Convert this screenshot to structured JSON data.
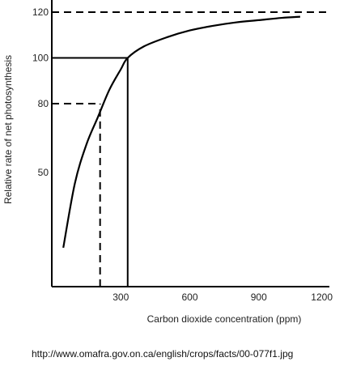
{
  "chart_data": {
    "type": "line",
    "title": "",
    "xlabel": "Carbon dioxide concentration (ppm)",
    "ylabel": "Relative rate of net photosynthesis",
    "xlim": [
      0,
      1200
    ],
    "ylim": [
      0,
      120
    ],
    "x_ticks": [
      300,
      600,
      900,
      1200
    ],
    "y_ticks": [
      50,
      80,
      100,
      120
    ],
    "x_tick_labels": [
      "300",
      "600",
      "900",
      "1200"
    ],
    "y_tick_labels": [
      "50",
      "80",
      "100",
      "120"
    ],
    "grid": false,
    "series": [
      {
        "x": [
          50,
          100,
          150,
          200,
          250,
          300,
          330,
          400,
          500,
          600,
          700,
          800,
          900,
          1000,
          1080
        ],
        "y": [
          17,
          45,
          62,
          74,
          86,
          95,
          100,
          105,
          109,
          112,
          114,
          115.5,
          116.5,
          117.5,
          118
        ]
      }
    ],
    "reference_lines": [
      {
        "style": "dashed",
        "y": 120,
        "x_from": 0,
        "x_to": 1200
      },
      {
        "style": "solid",
        "y": 100,
        "x_from": 0,
        "x_to": 330
      },
      {
        "style": "solid",
        "x": 330,
        "y_from": 0,
        "y_to": 100
      },
      {
        "style": "dashed",
        "y": 80,
        "x_from": 0,
        "x_to": 210
      },
      {
        "style": "dashed",
        "x": 210,
        "y_from": 0,
        "y_to": 80
      }
    ]
  },
  "source_url": "http://www.omafra.gov.on.ca/english/crops/facts/00-077f1.jpg"
}
